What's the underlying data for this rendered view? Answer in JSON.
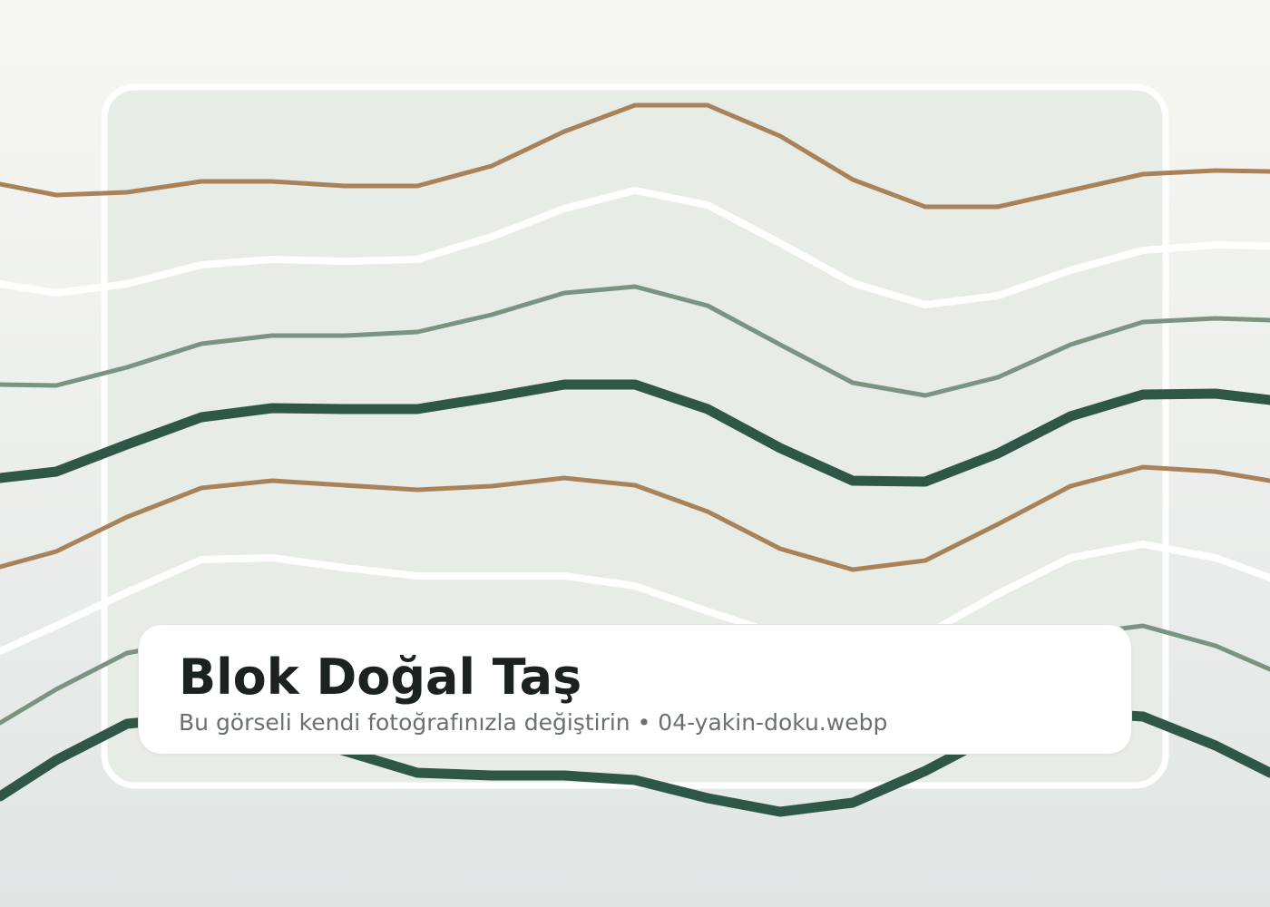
{
  "placeholder": {
    "title": "Blok Doğal Taş",
    "subtitle": "Bu görseli kendi fotoğrafınızla değiştirin • 04-yakin-doku.webp"
  },
  "colors": {
    "background_top": "#f7f7f3",
    "background_bottom": "#e1e6e5",
    "panel_fill": "#e8ece6",
    "panel_border": "#ffffff",
    "tan": "#a98259",
    "white": "#ffffff",
    "sage": "#7a9482",
    "dark_green": "#2f5747"
  },
  "wave_lines": [
    {
      "name": "tan-line-1",
      "color": "tan",
      "weight": "thin"
    },
    {
      "name": "white-line-1",
      "color": "white",
      "weight": "medium"
    },
    {
      "name": "sage-line-1",
      "color": "sage",
      "weight": "thin"
    },
    {
      "name": "dark-green-line-1",
      "color": "dark_green",
      "weight": "thick"
    },
    {
      "name": "tan-line-2",
      "color": "tan",
      "weight": "thin"
    },
    {
      "name": "white-line-2",
      "color": "white",
      "weight": "medium"
    },
    {
      "name": "sage-line-2",
      "color": "sage",
      "weight": "thin"
    },
    {
      "name": "dark-green-line-2",
      "color": "dark_green",
      "weight": "thick"
    }
  ]
}
